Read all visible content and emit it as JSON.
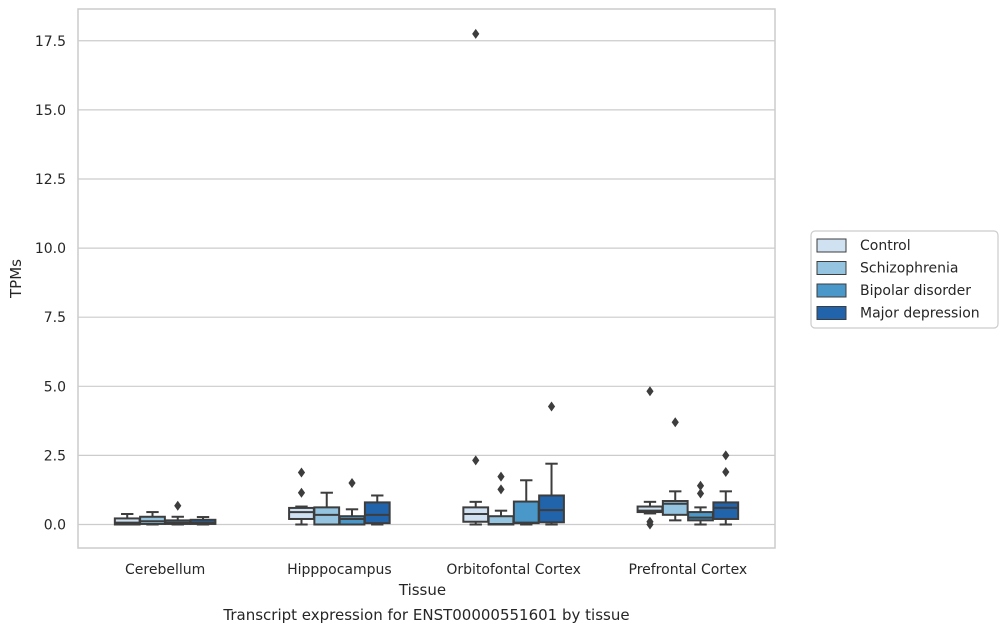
{
  "chart_data": {
    "type": "box",
    "xlabel": "Tissue",
    "ylabel": "TPMs",
    "caption": "Transcript expression for ENST00000551601 by tissue",
    "ylim": [
      -0.85,
      18.65
    ],
    "yticks": [
      0.0,
      2.5,
      5.0,
      7.5,
      10.0,
      12.5,
      15.0,
      17.5
    ],
    "ytick_labels": [
      "0.0",
      "2.5",
      "5.0",
      "7.5",
      "10.0",
      "12.5",
      "15.0",
      "17.5"
    ],
    "grid": "horizontal",
    "legend_position": "right",
    "categories": [
      "Cerebellum",
      "Hipppocampus",
      "Orbitofontal Cortex",
      "Prefrontal Cortex"
    ],
    "series": [
      {
        "name": "Control",
        "color": "#d0e1f2",
        "boxes": [
          {
            "whislo": 0.0,
            "q1": 0.0,
            "median": 0.07,
            "q3": 0.22,
            "whishi": 0.38,
            "fliers": []
          },
          {
            "whislo": 0.0,
            "q1": 0.2,
            "median": 0.45,
            "q3": 0.6,
            "whishi": 0.65,
            "fliers": [
              1.15,
              1.88
            ]
          },
          {
            "whislo": 0.0,
            "q1": 0.1,
            "median": 0.38,
            "q3": 0.62,
            "whishi": 0.82,
            "fliers": [
              2.32,
              17.75
            ]
          },
          {
            "whislo": 0.4,
            "q1": 0.45,
            "median": 0.5,
            "q3": 0.65,
            "whishi": 0.82,
            "fliers": [
              0.0,
              0.1,
              4.82
            ]
          }
        ]
      },
      {
        "name": "Schizophrenia",
        "color": "#94c4df",
        "boxes": [
          {
            "whislo": 0.0,
            "q1": 0.02,
            "median": 0.12,
            "q3": 0.28,
            "whishi": 0.45,
            "fliers": []
          },
          {
            "whislo": 0.0,
            "q1": 0.0,
            "median": 0.35,
            "q3": 0.62,
            "whishi": 1.15,
            "fliers": []
          },
          {
            "whislo": 0.0,
            "q1": 0.0,
            "median": 0.02,
            "q3": 0.3,
            "whishi": 0.5,
            "fliers": [
              1.27,
              1.73
            ]
          },
          {
            "whislo": 0.15,
            "q1": 0.35,
            "median": 0.75,
            "q3": 0.85,
            "whishi": 1.2,
            "fliers": [
              3.7
            ]
          }
        ]
      },
      {
        "name": "Bipolar disorder",
        "color": "#4a98c9",
        "boxes": [
          {
            "whislo": 0.0,
            "q1": 0.02,
            "median": 0.07,
            "q3": 0.15,
            "whishi": 0.28,
            "fliers": [
              0.68
            ]
          },
          {
            "whislo": 0.0,
            "q1": 0.0,
            "median": 0.2,
            "q3": 0.3,
            "whishi": 0.55,
            "fliers": [
              1.5
            ]
          },
          {
            "whislo": 0.0,
            "q1": 0.05,
            "median": 0.07,
            "q3": 0.83,
            "whishi": 1.6,
            "fliers": []
          },
          {
            "whislo": 0.0,
            "q1": 0.15,
            "median": 0.25,
            "q3": 0.45,
            "whishi": 0.62,
            "fliers": [
              1.12,
              1.4
            ]
          }
        ]
      },
      {
        "name": "Major depression",
        "color": "#2164ab",
        "boxes": [
          {
            "whislo": 0.0,
            "q1": 0.02,
            "median": 0.07,
            "q3": 0.17,
            "whishi": 0.27,
            "fliers": []
          },
          {
            "whislo": 0.0,
            "q1": 0.05,
            "median": 0.35,
            "q3": 0.8,
            "whishi": 1.05,
            "fliers": []
          },
          {
            "whislo": 0.0,
            "q1": 0.08,
            "median": 0.52,
            "q3": 1.05,
            "whishi": 2.2,
            "fliers": [
              4.27
            ]
          },
          {
            "whislo": 0.0,
            "q1": 0.2,
            "median": 0.6,
            "q3": 0.8,
            "whishi": 1.2,
            "fliers": [
              1.9,
              2.5
            ]
          }
        ]
      }
    ]
  },
  "styles": {
    "axis_color": "#cccccc",
    "grid_color": "#cccccc",
    "line_color": "#3d3d3d",
    "legend_border": "#cccccc"
  }
}
